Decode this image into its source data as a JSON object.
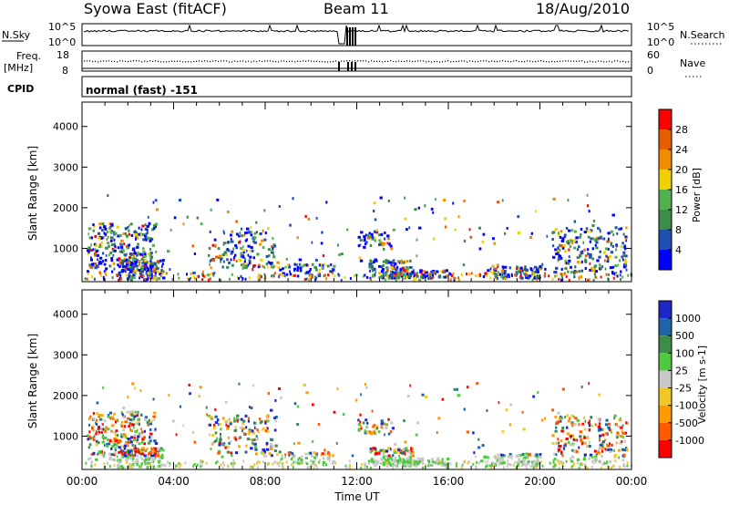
{
  "header": {
    "station": "Syowa East (fitACF)",
    "beam": "Beam 11",
    "date": "18/Aug/2010"
  },
  "summary": {
    "nsky_label": "N.Sky",
    "nsearch_label": "N.Search",
    "log_tick_top": "10^5",
    "log_tick_bottom": "10^0",
    "freq_label_1": "Freq.",
    "freq_label_2": "[MHz]",
    "freq_ticks": [
      "18",
      "8"
    ],
    "nave_label": "Nave",
    "nave_ticks": [
      "60",
      "0"
    ],
    "cpid_label": "CPID",
    "cpid_value": "normal (fast) -151"
  },
  "colors": {
    "power_scale": [
      "#0000ff",
      "#1f4fb0",
      "#3c8c4a",
      "#52b04e",
      "#f0d000",
      "#f08c00",
      "#e85c00",
      "#ff0000"
    ],
    "velocity_scale": [
      "#ff0000",
      "#ff5a00",
      "#ff9a00",
      "#f0c828",
      "#c8c8c8",
      "#50c840",
      "#3c8c4a",
      "#1f64a8",
      "#1e28c8"
    ]
  },
  "chart_data": [
    {
      "type": "heatmap",
      "title": "Power",
      "ylabel": "Slant Range [km]",
      "xlabel": "Time UT",
      "xlim": [
        "00:00",
        "24:00"
      ],
      "ylim": [
        180,
        4600
      ],
      "x_ticks": [
        "00:00",
        "04:00",
        "08:00",
        "12:00",
        "16:00",
        "20:00",
        "00:00"
      ],
      "y_ticks": [
        1000,
        2000,
        3000,
        4000
      ],
      "colorbar_label": "Power [dB]",
      "colorbar_ticks": [
        4,
        8,
        12,
        16,
        20,
        24,
        28
      ]
    },
    {
      "type": "heatmap",
      "title": "Velocity",
      "ylabel": "Slant Range [km]",
      "xlabel": "Time UT",
      "xlim": [
        "00:00",
        "24:00"
      ],
      "ylim": [
        180,
        4600
      ],
      "x_ticks": [
        "00:00",
        "04:00",
        "08:00",
        "12:00",
        "16:00",
        "20:00",
        "00:00"
      ],
      "y_ticks": [
        1000,
        2000,
        3000,
        4000
      ],
      "colorbar_label": "Velocity [m s-1]",
      "colorbar_ticks": [
        1000,
        500,
        100,
        25,
        -25,
        -100,
        -500,
        -1000
      ]
    }
  ]
}
